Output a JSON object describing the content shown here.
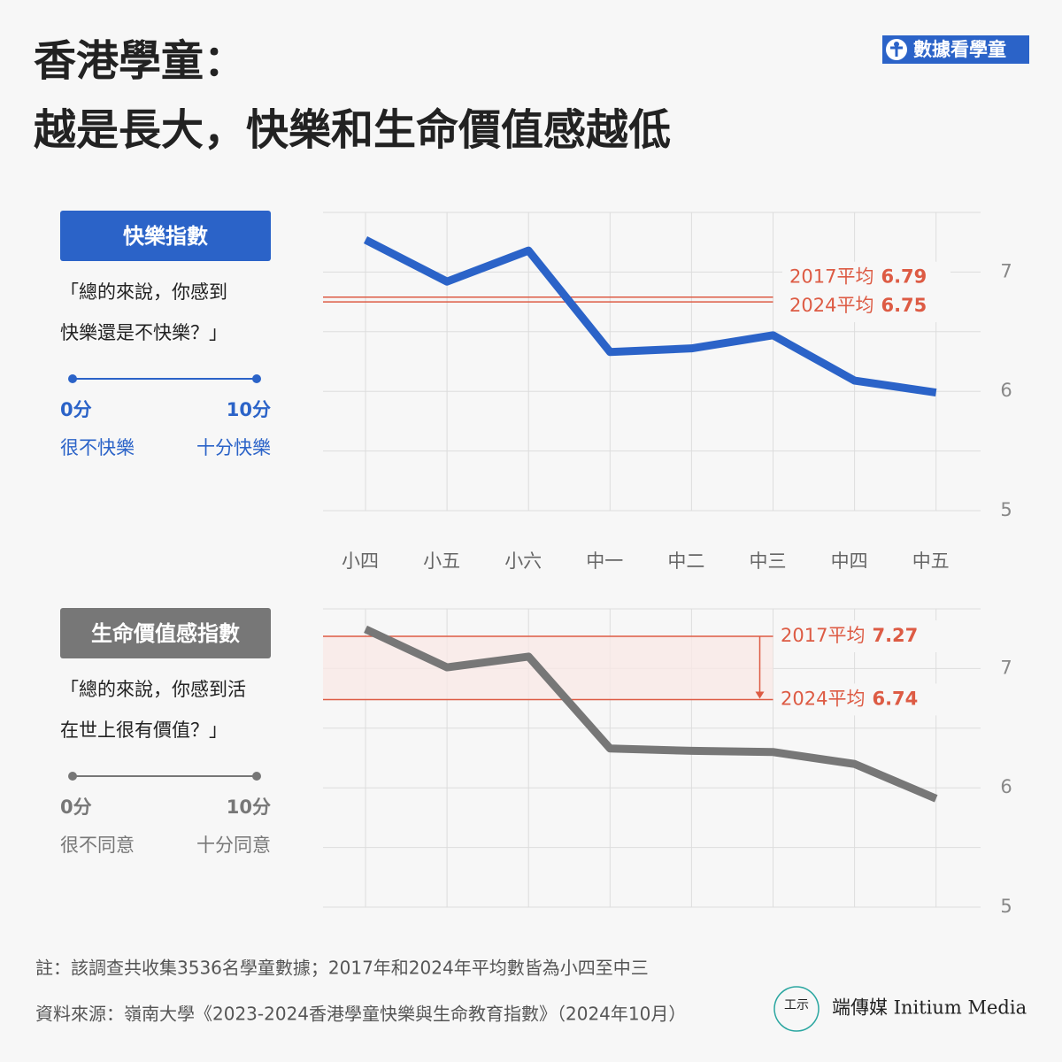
{
  "header": {
    "title_lines": [
      "香港學童：",
      "越是長大，快樂和生命價值感越低"
    ],
    "brand": "數據看學童"
  },
  "chart_data": [
    {
      "type": "line",
      "title": "快樂指數",
      "question_lines": [
        "「總的來說，你感到",
        "快樂還是不快樂？」"
      ],
      "scale": {
        "min_label": "0分",
        "max_label": "10分",
        "min_desc": "很不快樂",
        "max_desc": "十分快樂"
      },
      "categories": [
        "小四",
        "小五",
        "小六",
        "中一",
        "中二",
        "中三",
        "中四",
        "中五"
      ],
      "series": [
        {
          "color": "#2b63c8",
          "values": [
            7.27,
            6.92,
            7.18,
            6.33,
            6.36,
            6.47,
            6.09,
            5.99
          ]
        }
      ],
      "references": [
        {
          "label": "2017平均",
          "value": 6.79
        },
        {
          "label": "2024平均",
          "value": 6.75
        }
      ],
      "reference_color": "#dd5b44",
      "ylim": [
        5,
        7.5
      ],
      "yticks": [
        5,
        6,
        7
      ],
      "minor_yticks": [
        5.5,
        6.5,
        7.5
      ],
      "grid": true
    },
    {
      "type": "line",
      "title": "生命價值感指數",
      "question_lines": [
        "「總的來說，你感到活",
        "在世上很有價值？」"
      ],
      "scale": {
        "min_label": "0分",
        "max_label": "10分",
        "min_desc": "很不同意",
        "max_desc": "十分同意"
      },
      "series": [
        {
          "color": "#777777",
          "values": [
            7.33,
            7.01,
            7.1,
            6.33,
            6.31,
            6.3,
            6.2,
            5.91
          ]
        }
      ],
      "references": [
        {
          "label": "2017平均",
          "value": 7.27
        },
        {
          "label": "2024平均",
          "value": 6.74
        }
      ],
      "reference_color": "#dd5b44",
      "ylim": [
        5,
        7.5
      ],
      "yticks": [
        5,
        6,
        7
      ],
      "minor_yticks": [
        5.5,
        6.5,
        7.5
      ],
      "grid": true
    }
  ],
  "footer": {
    "note": "註：該調查共收集3536名學童數據；2017年和2024年平均數皆為小四至中三",
    "source": "資料來源：嶺南大學《2023-2024香港學童快樂與生命教育指數》（2024年10月）",
    "publisher": "端傳媒 Initium Media"
  }
}
